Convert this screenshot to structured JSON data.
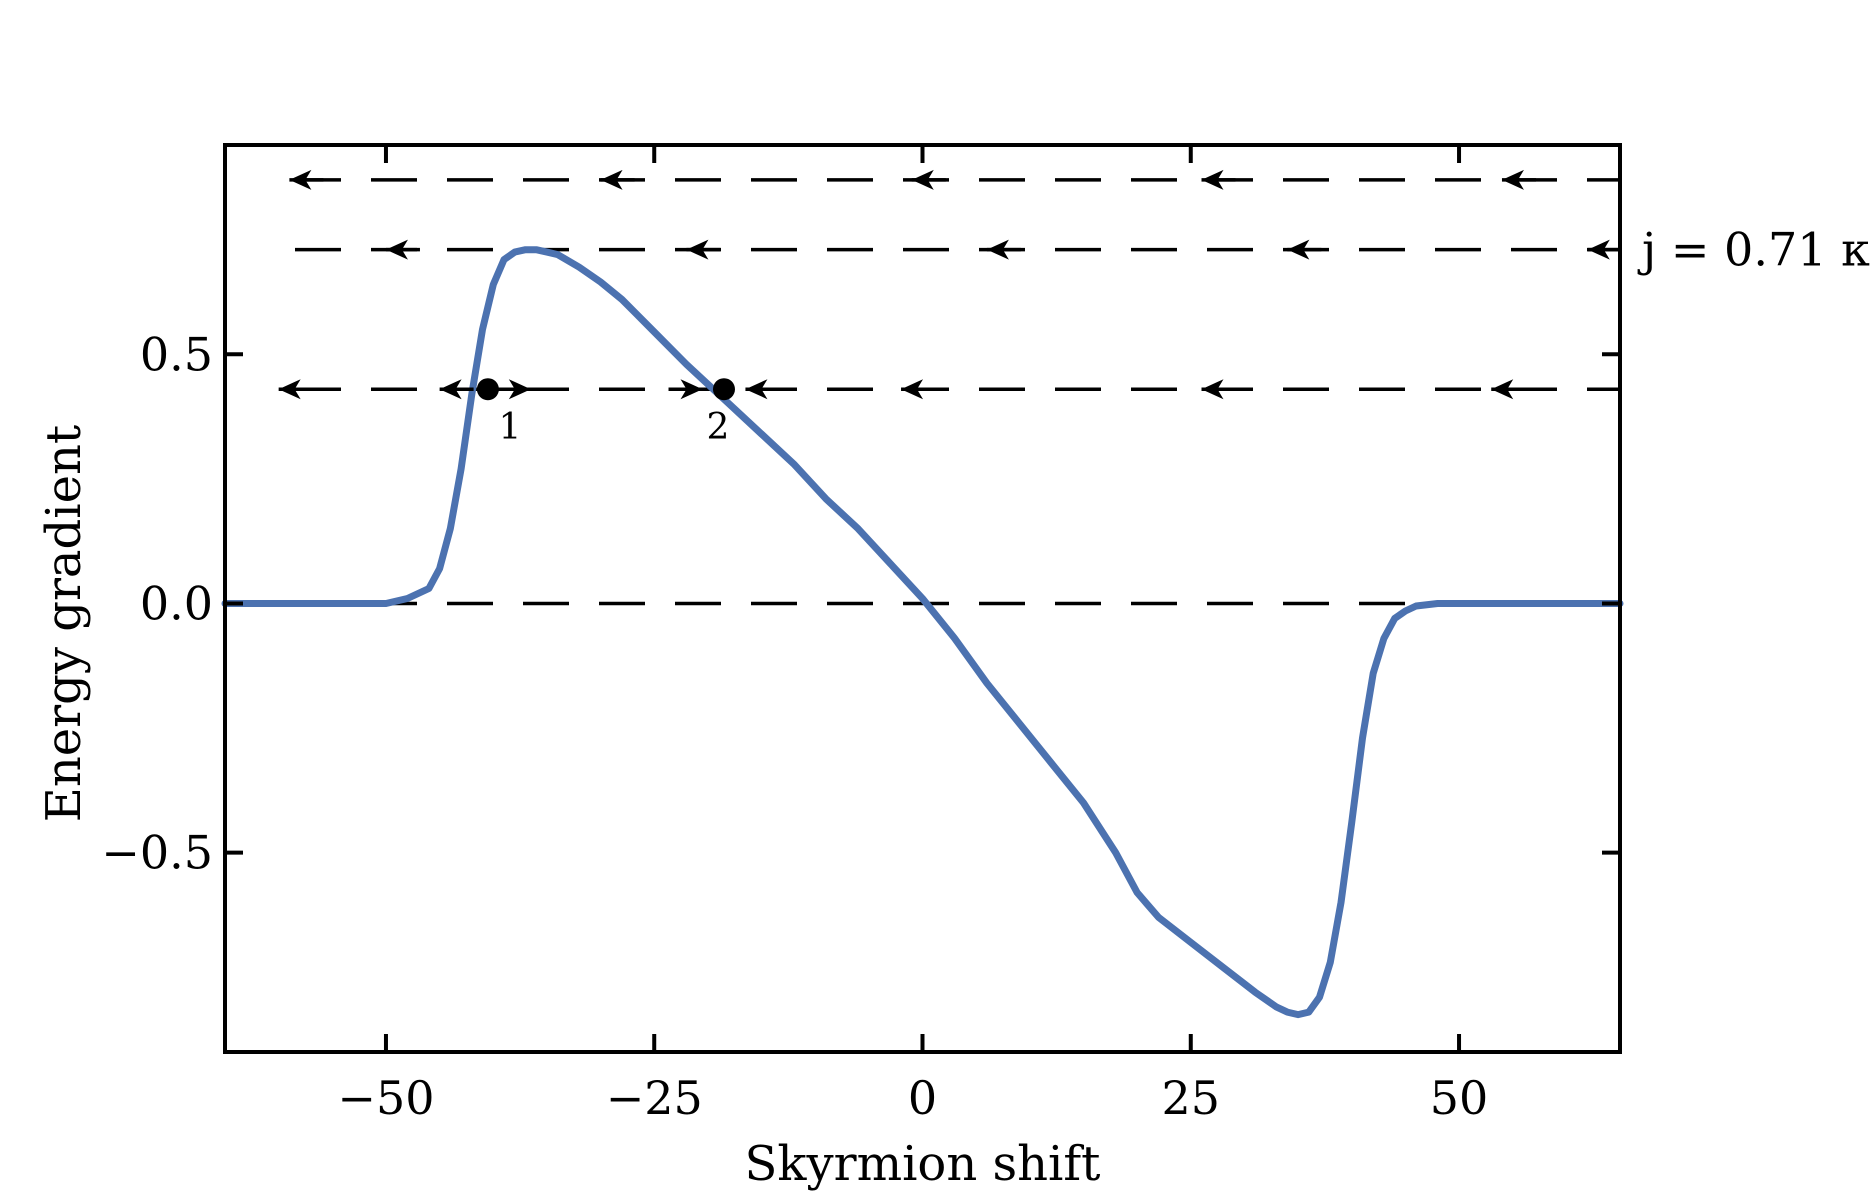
{
  "chart_data": {
    "type": "line",
    "title": "",
    "xlabel": "Skyrmion shift",
    "ylabel": "Energy gradient",
    "xlim": [
      -65,
      65
    ],
    "ylim": [
      -0.9,
      0.92
    ],
    "xticks": [
      -50,
      -25,
      0,
      25,
      50
    ],
    "xtick_labels": [
      "−50",
      "−25",
      "0",
      "25",
      "50"
    ],
    "yticks": [
      -0.5,
      0.0,
      0.5
    ],
    "ytick_labels": [
      "−0.5",
      "0.0",
      "0.5"
    ],
    "grid": false,
    "legend": "none",
    "series": [
      {
        "color": "#4c72b0",
        "x": [
          -65,
          -50,
          -48,
          -46,
          -45,
          -44,
          -43,
          -42,
          -41,
          -40,
          -39,
          -38,
          -37,
          -36,
          -35,
          -34,
          -32,
          -30,
          -28,
          -25,
          -22,
          -19,
          -18,
          -15,
          -12,
          -9,
          -6,
          -3,
          0,
          3,
          6,
          9,
          12,
          15,
          18,
          20,
          22,
          25,
          28,
          31,
          33,
          34,
          35,
          36,
          37,
          38,
          39,
          40,
          41,
          42,
          43,
          44,
          45,
          46,
          48,
          50,
          55,
          65
        ],
        "y": [
          0.0,
          0.0,
          0.01,
          0.03,
          0.07,
          0.15,
          0.27,
          0.42,
          0.55,
          0.64,
          0.69,
          0.705,
          0.71,
          0.71,
          0.705,
          0.7,
          0.675,
          0.645,
          0.61,
          0.545,
          0.48,
          0.42,
          0.4,
          0.34,
          0.28,
          0.21,
          0.15,
          0.08,
          0.01,
          -0.07,
          -0.16,
          -0.24,
          -0.32,
          -0.4,
          -0.5,
          -0.58,
          -0.63,
          -0.68,
          -0.73,
          -0.78,
          -0.81,
          -0.82,
          -0.825,
          -0.82,
          -0.79,
          -0.72,
          -0.6,
          -0.44,
          -0.27,
          -0.14,
          -0.07,
          -0.03,
          -0.015,
          -0.005,
          0.0,
          0.0,
          0.0,
          0.0
        ]
      }
    ],
    "current_lines": [
      {
        "y": 0.0,
        "arrows": false
      },
      {
        "y": 0.43,
        "arrows": true
      },
      {
        "y": 0.71,
        "arrows": true,
        "label": "j = 0.71 κ"
      },
      {
        "y": 0.85,
        "arrows": true
      }
    ],
    "line_color": "#000000",
    "fixed_points": [
      {
        "x": -40.5,
        "y": 0.43,
        "label": "1",
        "type": "unstable"
      },
      {
        "x": -18.5,
        "y": 0.43,
        "label": "2",
        "type": "stable"
      }
    ]
  }
}
